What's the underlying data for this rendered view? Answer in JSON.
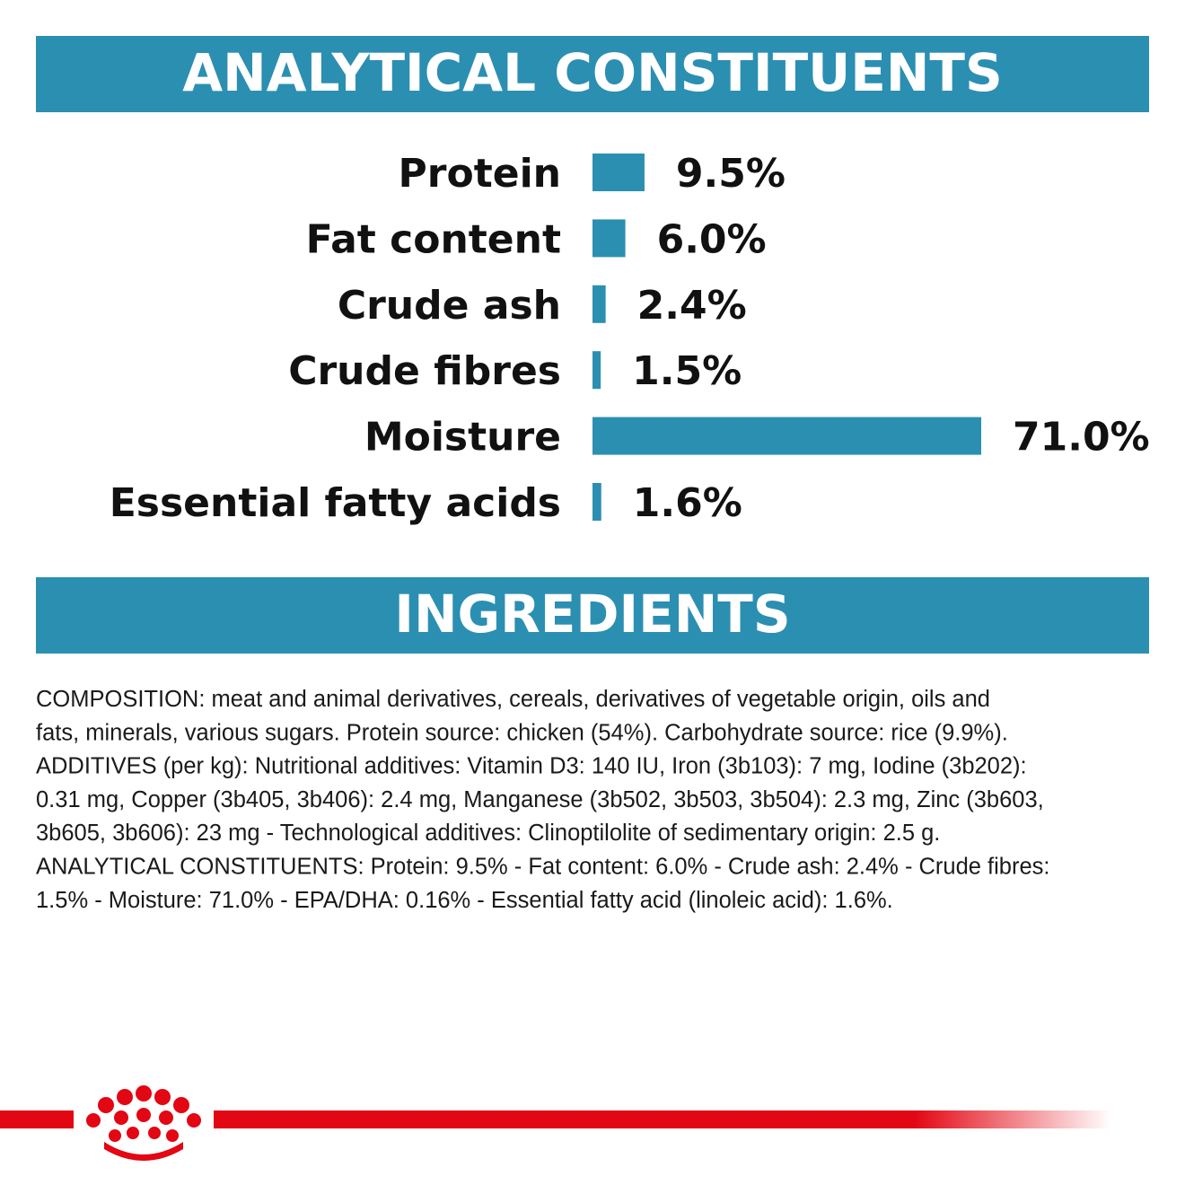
{
  "chart_data": {
    "type": "bar",
    "orientation": "horizontal",
    "title": "ANALYTICAL CONSTITUENTS",
    "categories": [
      "Protein",
      "Fat content",
      "Crude ash",
      "Crude fibres",
      "Moisture",
      "Essential fatty acids"
    ],
    "values": [
      9.5,
      6.0,
      2.4,
      1.5,
      71.0,
      1.6
    ],
    "value_labels": [
      "9.5%",
      "6.0%",
      "2.4%",
      "1.5%",
      "71.0%",
      "1.6%"
    ],
    "color": "#2b8fb2"
  },
  "ingredients": {
    "title": "INGREDIENTS",
    "lines": [
      "COMPOSITION: meat and animal derivatives, cereals, derivatives of vegetable origin, oils and",
      "fats, minerals, various sugars. Protein source: chicken (54%). Carbohydrate source: rice (9.9%).",
      "ADDITIVES (per kg): Nutritional additives: Vitamin D3: 140 IU, Iron (3b103): 7 mg, Iodine (3b202):",
      "0.31 mg, Copper (3b405, 3b406): 2.4 mg, Manganese (3b502, 3b503, 3b504): 2.3 mg, Zinc (3b603,",
      "3b605, 3b606): 23 mg - Technological additives: Clinoptilolite of sedimentary origin: 2.5 g.",
      "ANALYTICAL CONSTITUENTS: Protein: 9.5% - Fat content: 6.0% - Crude ash: 2.4% - Crude fibres:",
      "1.5% - Moisture: 71.0% - EPA/DHA: 0.16% - Essential fatty acid (linoleic acid): 1.6%."
    ]
  }
}
